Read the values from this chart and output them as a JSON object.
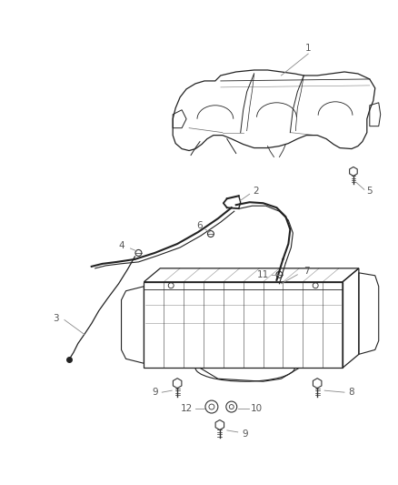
{
  "background_color": "#ffffff",
  "line_color": "#222222",
  "gray_color": "#888888",
  "label_color": "#555555",
  "fig_width": 4.38,
  "fig_height": 5.33,
  "dpi": 100
}
